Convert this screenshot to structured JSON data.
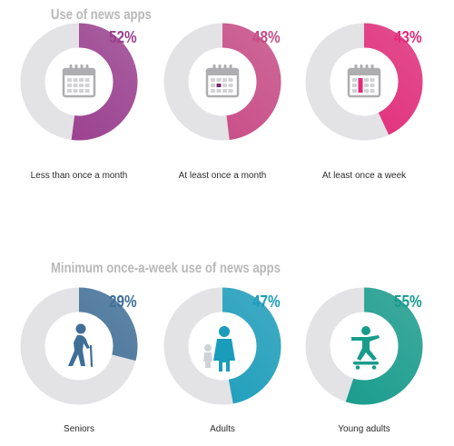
{
  "chart_data": [
    {
      "type": "pie",
      "title": "Use of news apps",
      "categories": [
        "Less than once a month",
        "At least once a month",
        "At least once a week"
      ],
      "values": [
        52,
        48,
        43
      ],
      "value_labels": [
        "52%",
        "48%",
        "43%"
      ],
      "colors": [
        "#9a3e8e",
        "#c84a85",
        "#e22a78"
      ],
      "icon": [
        "calendar-icon",
        "calendar-icon",
        "calendar-icon"
      ],
      "remainder_color": "#e3e3e5"
    },
    {
      "type": "pie",
      "title": "Minimum once-a-week use of news apps",
      "categories": [
        "Seniors",
        "Adults",
        "Young adults"
      ],
      "values": [
        29,
        47,
        55
      ],
      "value_labels": [
        "29%",
        "47%",
        "55%"
      ],
      "colors": [
        "#3f6f97",
        "#1a9dbb",
        "#179c8c"
      ],
      "icon": [
        "senior-person-icon",
        "parent-child-icon",
        "skateboarder-icon"
      ],
      "remainder_color": "#e3e3e5"
    }
  ]
}
